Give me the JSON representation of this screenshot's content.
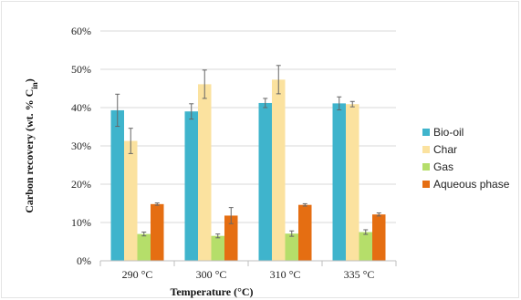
{
  "chart_data": {
    "type": "bar",
    "xlabel": "Temperature (°C)",
    "ylabel_prefix": "Carbon recovery (wt. % C",
    "ylabel_sub": "in",
    "ylabel_suffix": ")",
    "ylim": [
      0,
      60
    ],
    "yticks": [
      "0%",
      "10%",
      "20%",
      "30%",
      "40%",
      "50%",
      "60%"
    ],
    "ytick_values": [
      0,
      10,
      20,
      30,
      40,
      50,
      60
    ],
    "grid": true,
    "legend_position": "right",
    "categories": [
      "290 °C",
      "300 °C",
      "310 °C",
      "335 °C"
    ],
    "series": [
      {
        "name": "Bio-oil",
        "color": "#3fb4cc",
        "values": [
          39.3,
          39.0,
          41.2,
          41.1
        ],
        "errors": [
          4.2,
          2.0,
          1.2,
          1.7
        ]
      },
      {
        "name": "Char",
        "color": "#fbe29f",
        "values": [
          31.3,
          46.1,
          47.3,
          40.9
        ],
        "errors": [
          3.3,
          3.7,
          3.7,
          0.7
        ]
      },
      {
        "name": "Gas",
        "color": "#b5de6a",
        "values": [
          7.0,
          6.5,
          7.1,
          7.5
        ],
        "errors": [
          0.5,
          0.5,
          0.7,
          0.6
        ]
      },
      {
        "name": "Aqueous phase",
        "color": "#e56e12",
        "values": [
          14.8,
          11.8,
          14.6,
          12.1
        ],
        "errors": [
          0.3,
          2.1,
          0.3,
          0.4
        ]
      }
    ]
  }
}
